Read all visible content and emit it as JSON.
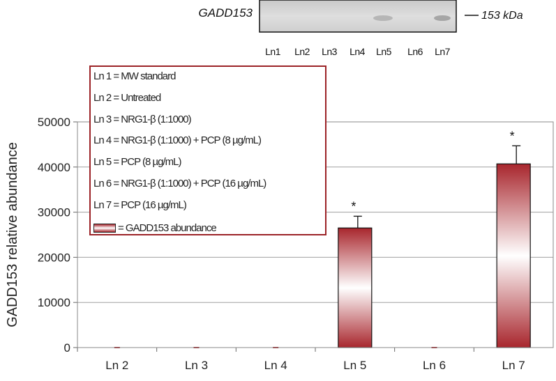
{
  "blot": {
    "protein_label": "GADD153",
    "marker_label": "153 kDa",
    "lanes": [
      "Ln1",
      "Ln2",
      "Ln3",
      "Ln4",
      "Ln5",
      "Ln6",
      "Ln7"
    ]
  },
  "legend": {
    "entries": [
      "Ln 1 = MW standard",
      "Ln 2 = Untreated",
      "Ln 3 = NRG1-β (1:1000)",
      "Ln 4 = NRG1-β (1:1000) + PCP (8 µg/mL)",
      "Ln 5 = PCP (8 µg/mL)",
      "Ln 6 = NRG1-β (1:1000) + PCP (16 µg/mL)",
      "Ln 7 = PCP (16 µg/mL)"
    ],
    "swatch_label": "= GADD153 abundance"
  },
  "chart_data": {
    "type": "bar",
    "title": "",
    "xlabel": "",
    "ylabel": "GADD153 relative abundance",
    "categories": [
      "Ln 2",
      "Ln 3",
      "Ln 4",
      "Ln 5",
      "Ln 6",
      "Ln 7"
    ],
    "values": [
      0,
      0,
      0,
      26500,
      0,
      40700
    ],
    "errors": [
      0,
      0,
      0,
      2600,
      0,
      4000
    ],
    "significance": [
      "",
      "",
      "",
      "*",
      "",
      "*"
    ],
    "ylim": [
      0,
      50000
    ],
    "yticks": [
      0,
      10000,
      20000,
      30000,
      40000,
      50000
    ],
    "grid": true,
    "colors": {
      "bar_edge": "#a8262d",
      "bar_center": "#ffffff"
    }
  }
}
